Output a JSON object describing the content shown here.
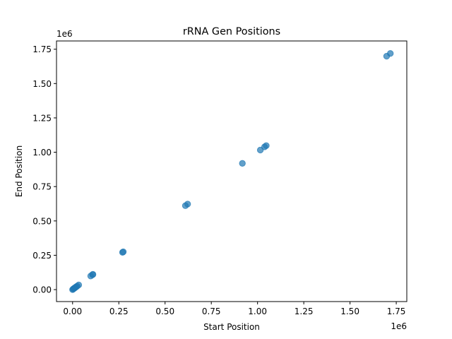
{
  "chart_data": {
    "type": "scatter",
    "title": "rRNA Gen Positions",
    "xlabel": "Start Position",
    "ylabel": "End Position",
    "x_offset_label": "1e6",
    "y_offset_label": "1e6",
    "xlim": [
      -0.087,
      1.807
    ],
    "ylim": [
      -0.087,
      1.81
    ],
    "xticks": [
      0.0,
      0.25,
      0.5,
      0.75,
      1.0,
      1.25,
      1.5,
      1.75
    ],
    "xtick_labels": [
      "0.00",
      "0.25",
      "0.50",
      "0.75",
      "1.00",
      "1.25",
      "1.50",
      "1.75"
    ],
    "yticks": [
      0.0,
      0.25,
      0.5,
      0.75,
      1.0,
      1.25,
      1.5,
      1.75
    ],
    "ytick_labels": [
      "0.00",
      "0.25",
      "0.50",
      "0.75",
      "1.00",
      "1.25",
      "1.50",
      "1.75"
    ],
    "grid": false,
    "marker_color": "#1f77b4",
    "marker_alpha": 0.7,
    "points": [
      {
        "x": 0.0,
        "y": 0.0
      },
      {
        "x": 0.003,
        "y": 0.004
      },
      {
        "x": 0.006,
        "y": 0.007
      },
      {
        "x": 0.009,
        "y": 0.01
      },
      {
        "x": 0.012,
        "y": 0.013
      },
      {
        "x": 0.016,
        "y": 0.017
      },
      {
        "x": 0.02,
        "y": 0.021
      },
      {
        "x": 0.025,
        "y": 0.026
      },
      {
        "x": 0.033,
        "y": 0.034
      },
      {
        "x": 0.098,
        "y": 0.099
      },
      {
        "x": 0.108,
        "y": 0.109
      },
      {
        "x": 0.11,
        "y": 0.111
      },
      {
        "x": 0.27,
        "y": 0.271
      },
      {
        "x": 0.274,
        "y": 0.275
      },
      {
        "x": 0.61,
        "y": 0.611
      },
      {
        "x": 0.622,
        "y": 0.623
      },
      {
        "x": 0.918,
        "y": 0.919
      },
      {
        "x": 1.015,
        "y": 1.016
      },
      {
        "x": 1.038,
        "y": 1.039
      },
      {
        "x": 1.047,
        "y": 1.048
      },
      {
        "x": 1.698,
        "y": 1.699
      },
      {
        "x": 1.718,
        "y": 1.719
      }
    ]
  }
}
